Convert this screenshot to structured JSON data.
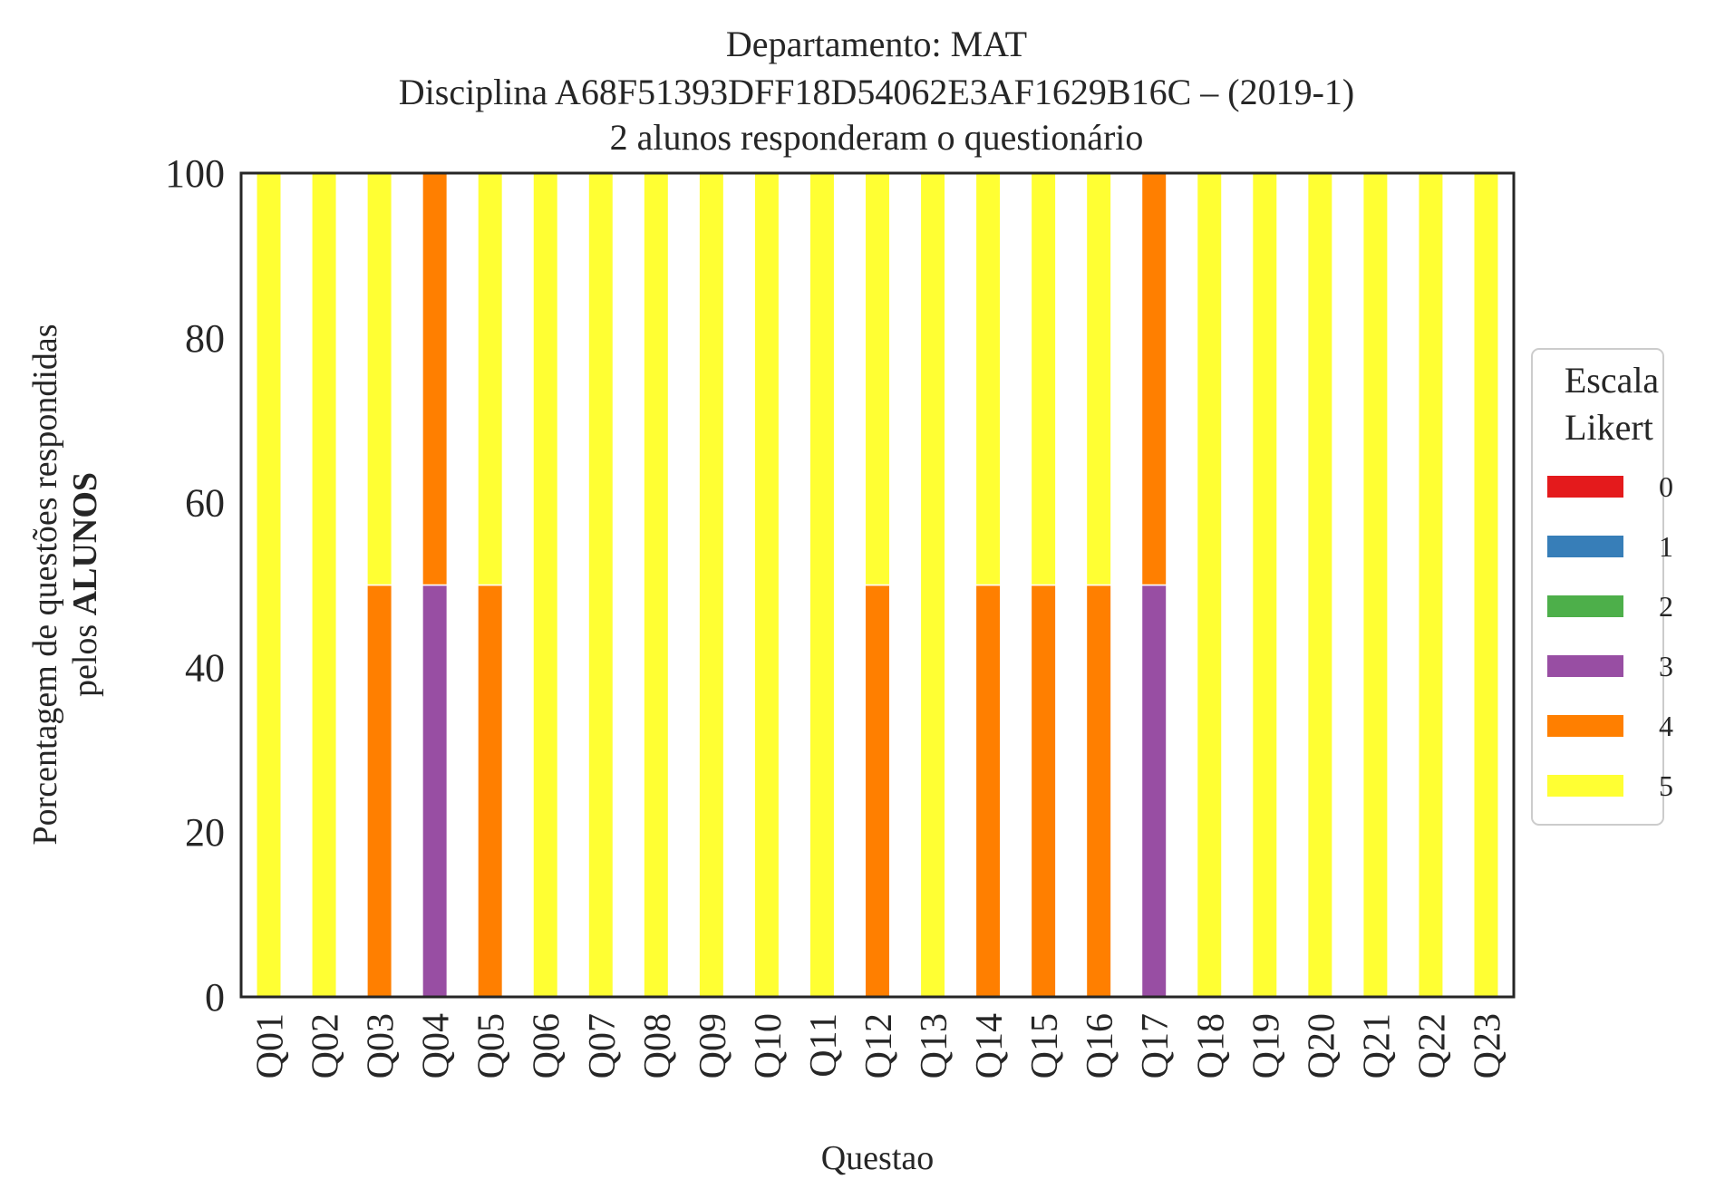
{
  "chart_data": {
    "type": "bar",
    "stacked": true,
    "title_lines": [
      "Departamento: MAT",
      "Disciplina A68F51393DFF18D54062E3AF1629B16C – (2019-1)",
      "2 alunos responderam o questionário"
    ],
    "xlabel": "Questao",
    "ylabel_line1": "Porcentagem de questões respondidas",
    "ylabel_line2_prefix": "pelos ",
    "ylabel_line2_bold": "ALUNOS",
    "ylim": [
      0,
      100
    ],
    "yticks": [
      0,
      20,
      40,
      60,
      80,
      100
    ],
    "grid": false,
    "legend_title_lines": [
      "Escala",
      "Likert"
    ],
    "legend_position": "right, outside",
    "categories": [
      "Q01",
      "Q02",
      "Q03",
      "Q04",
      "Q05",
      "Q06",
      "Q07",
      "Q08",
      "Q09",
      "Q10",
      "Q11",
      "Q12",
      "Q13",
      "Q14",
      "Q15",
      "Q16",
      "Q17",
      "Q18",
      "Q19",
      "Q20",
      "Q21",
      "Q22",
      "Q23"
    ],
    "series": [
      {
        "name": "0",
        "color": "#e41a1c",
        "values": [
          0,
          0,
          0,
          0,
          0,
          0,
          0,
          0,
          0,
          0,
          0,
          0,
          0,
          0,
          0,
          0,
          0,
          0,
          0,
          0,
          0,
          0,
          0
        ]
      },
      {
        "name": "1",
        "color": "#377eb8",
        "values": [
          0,
          0,
          0,
          0,
          0,
          0,
          0,
          0,
          0,
          0,
          0,
          0,
          0,
          0,
          0,
          0,
          0,
          0,
          0,
          0,
          0,
          0,
          0
        ]
      },
      {
        "name": "2",
        "color": "#4daf4a",
        "values": [
          0,
          0,
          0,
          0,
          0,
          0,
          0,
          0,
          0,
          0,
          0,
          0,
          0,
          0,
          0,
          0,
          0,
          0,
          0,
          0,
          0,
          0,
          0
        ]
      },
      {
        "name": "3",
        "color": "#984ea3",
        "values": [
          0,
          0,
          0,
          50,
          0,
          0,
          0,
          0,
          0,
          0,
          0,
          0,
          0,
          0,
          0,
          0,
          50,
          0,
          0,
          0,
          0,
          0,
          0
        ]
      },
      {
        "name": "4",
        "color": "#ff7f00",
        "values": [
          0,
          0,
          50,
          50,
          50,
          0,
          0,
          0,
          0,
          0,
          0,
          50,
          0,
          50,
          50,
          50,
          50,
          0,
          0,
          0,
          0,
          0,
          0
        ]
      },
      {
        "name": "5",
        "color": "#ffff33",
        "values": [
          100,
          100,
          50,
          0,
          50,
          100,
          100,
          100,
          100,
          100,
          100,
          50,
          100,
          50,
          50,
          50,
          0,
          100,
          100,
          100,
          100,
          100,
          100
        ]
      }
    ]
  }
}
